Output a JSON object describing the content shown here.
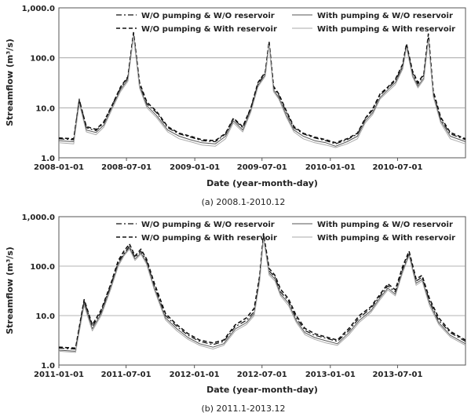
{
  "chart_data": [
    {
      "type": "line",
      "caption": "(a) 2008.1-2010.12",
      "xlabel": "Date (year-month-day)",
      "ylabel": "Streamflow (m³/s)",
      "y_scale": "log",
      "ylim": [
        1.0,
        1000.0
      ],
      "yticks": [
        "1.0",
        "10.0",
        "100.0",
        "1,000.0"
      ],
      "xlim": [
        "2008-01-01",
        "2010-12-31"
      ],
      "xticks": [
        "2008-01-01",
        "2008-07-01",
        "2009-01-01",
        "2009-07-01",
        "2010-01-01",
        "2010-07-01"
      ],
      "grid": "horizontal",
      "legend_placement": "top",
      "series": [
        {
          "name": "W/O pumping & W/O reservoir",
          "style": "dash-dot",
          "color": "#111111",
          "x": [
            "2008-01-01",
            "2008-02-10",
            "2008-02-25",
            "2008-03-15",
            "2008-04-10",
            "2008-05-01",
            "2008-05-25",
            "2008-06-15",
            "2008-07-05",
            "2008-07-20",
            "2008-08-05",
            "2008-08-25",
            "2008-09-20",
            "2008-10-20",
            "2008-11-20",
            "2008-12-20",
            "2009-01-20",
            "2009-02-25",
            "2009-03-25",
            "2009-04-15",
            "2009-05-10",
            "2009-06-01",
            "2009-06-20",
            "2009-07-10",
            "2009-07-20",
            "2009-08-01",
            "2009-08-15",
            "2009-09-05",
            "2009-09-25",
            "2009-10-20",
            "2009-11-20",
            "2009-12-20",
            "2010-01-15",
            "2010-02-15",
            "2010-03-15",
            "2010-04-05",
            "2010-04-25",
            "2010-05-15",
            "2010-06-05",
            "2010-06-25",
            "2010-07-15",
            "2010-07-25",
            "2010-08-10",
            "2010-08-25",
            "2010-09-10",
            "2010-09-22",
            "2010-10-05",
            "2010-10-25",
            "2010-11-20",
            "2010-12-31"
          ],
          "values": [
            2.4,
            2.3,
            15,
            4,
            3.5,
            5,
            12,
            25,
            40,
            300,
            30,
            12,
            8,
            4,
            3,
            2.6,
            2.2,
            2.1,
            3,
            6,
            4,
            10,
            30,
            50,
            200,
            25,
            18,
            8,
            4,
            3,
            2.5,
            2.2,
            1.9,
            2.3,
            3,
            6,
            9,
            18,
            25,
            35,
            70,
            180,
            50,
            30,
            45,
            250,
            20,
            6,
            3,
            2.3
          ]
        },
        {
          "name": "With pumping & W/O reservoir",
          "style": "solid",
          "color": "#555555",
          "x": [
            "2008-01-01",
            "2008-02-10",
            "2008-02-25",
            "2008-03-15",
            "2008-04-10",
            "2008-05-01",
            "2008-05-25",
            "2008-06-15",
            "2008-07-05",
            "2008-07-20",
            "2008-08-05",
            "2008-08-25",
            "2008-09-20",
            "2008-10-20",
            "2008-11-20",
            "2008-12-20",
            "2009-01-20",
            "2009-02-25",
            "2009-03-25",
            "2009-04-15",
            "2009-05-10",
            "2009-06-01",
            "2009-06-20",
            "2009-07-10",
            "2009-07-20",
            "2009-08-01",
            "2009-08-15",
            "2009-09-05",
            "2009-09-25",
            "2009-10-20",
            "2009-11-20",
            "2009-12-20",
            "2010-01-15",
            "2010-02-15",
            "2010-03-15",
            "2010-04-05",
            "2010-04-25",
            "2010-05-15",
            "2010-06-05",
            "2010-06-25",
            "2010-07-15",
            "2010-07-25",
            "2010-08-10",
            "2010-08-25",
            "2010-09-10",
            "2010-09-22",
            "2010-10-05",
            "2010-10-25",
            "2010-11-20",
            "2010-12-31"
          ],
          "values": [
            2.2,
            2.1,
            13,
            3.6,
            3.2,
            4.5,
            11,
            23,
            37,
            280,
            27,
            11,
            7,
            3.6,
            2.7,
            2.3,
            2.0,
            1.9,
            2.7,
            5.5,
            3.6,
            9,
            28,
            46,
            190,
            23,
            16,
            7,
            3.6,
            2.7,
            2.2,
            2.0,
            1.7,
            2.1,
            2.7,
            5.5,
            8,
            16,
            23,
            32,
            65,
            170,
            45,
            27,
            40,
            240,
            18,
            5.5,
            2.7,
            2.1
          ]
        },
        {
          "name": "W/O pumping & With reservoir",
          "style": "dash",
          "color": "#111111",
          "x": [
            "2008-01-01",
            "2008-02-10",
            "2008-02-25",
            "2008-03-15",
            "2008-04-10",
            "2008-05-01",
            "2008-05-25",
            "2008-06-15",
            "2008-07-05",
            "2008-07-20",
            "2008-08-05",
            "2008-08-25",
            "2008-09-20",
            "2008-10-20",
            "2008-11-20",
            "2008-12-20",
            "2009-01-20",
            "2009-02-25",
            "2009-03-25",
            "2009-04-15",
            "2009-05-10",
            "2009-06-01",
            "2009-06-20",
            "2009-07-10",
            "2009-07-20",
            "2009-08-01",
            "2009-08-15",
            "2009-09-05",
            "2009-09-25",
            "2009-10-20",
            "2009-11-20",
            "2009-12-20",
            "2010-01-15",
            "2010-02-15",
            "2010-03-15",
            "2010-04-05",
            "2010-04-25",
            "2010-05-15",
            "2010-06-05",
            "2010-06-25",
            "2010-07-15",
            "2010-07-25",
            "2010-08-10",
            "2010-08-25",
            "2010-09-10",
            "2010-09-22",
            "2010-10-05",
            "2010-10-25",
            "2010-11-20",
            "2010-12-31"
          ],
          "values": [
            2.5,
            2.4,
            14,
            4.2,
            3.7,
            5.2,
            12,
            26,
            42,
            320,
            32,
            13,
            8.5,
            4.2,
            3.1,
            2.7,
            2.3,
            2.2,
            3.1,
            6.2,
            4.2,
            10,
            32,
            52,
            210,
            27,
            19,
            8.5,
            4.2,
            3.1,
            2.6,
            2.3,
            2.0,
            2.4,
            3.1,
            6.2,
            9.5,
            19,
            26,
            37,
            75,
            190,
            55,
            32,
            48,
            300,
            22,
            6.5,
            3.2,
            2.4
          ]
        },
        {
          "name": "With pumping & With reservoir",
          "style": "solid-light",
          "color": "#aaaaaa",
          "x": [
            "2008-01-01",
            "2008-02-10",
            "2008-02-25",
            "2008-03-15",
            "2008-04-10",
            "2008-05-01",
            "2008-05-25",
            "2008-06-15",
            "2008-07-05",
            "2008-07-20",
            "2008-08-05",
            "2008-08-25",
            "2008-09-20",
            "2008-10-20",
            "2008-11-20",
            "2008-12-20",
            "2009-01-20",
            "2009-02-25",
            "2009-03-25",
            "2009-04-15",
            "2009-05-10",
            "2009-06-01",
            "2009-06-20",
            "2009-07-10",
            "2009-07-20",
            "2009-08-01",
            "2009-08-15",
            "2009-09-05",
            "2009-09-25",
            "2009-10-20",
            "2009-11-20",
            "2009-12-20",
            "2010-01-15",
            "2010-02-15",
            "2010-03-15",
            "2010-04-05",
            "2010-04-25",
            "2010-05-15",
            "2010-06-05",
            "2010-06-25",
            "2010-07-15",
            "2010-07-25",
            "2010-08-10",
            "2010-08-25",
            "2010-09-10",
            "2010-09-22",
            "2010-10-05",
            "2010-10-25",
            "2010-11-20",
            "2010-12-31"
          ],
          "values": [
            2.0,
            1.9,
            12,
            3.3,
            2.9,
            4.1,
            10,
            21,
            34,
            270,
            25,
            10,
            6.4,
            3.3,
            2.4,
            2.1,
            1.8,
            1.7,
            2.4,
            5,
            3.3,
            8.2,
            26,
            43,
            180,
            21,
            15,
            6.4,
            3.3,
            2.4,
            2.0,
            1.8,
            1.6,
            1.9,
            2.4,
            5,
            7.3,
            15,
            21,
            29,
            60,
            160,
            42,
            25,
            37,
            230,
            17,
            5,
            2.4,
            1.9
          ]
        }
      ]
    },
    {
      "type": "line",
      "caption": "(b) 2011.1-2013.12",
      "xlabel": "Date (year-month-day)",
      "ylabel": "Streamflow (m³/s)",
      "y_scale": "log",
      "ylim": [
        1.0,
        1000.0
      ],
      "yticks": [
        "1.0",
        "10.0",
        "100.0",
        "1,000.0"
      ],
      "xlim": [
        "2011-01-01",
        "2013-12-31"
      ],
      "xticks": [
        "2011-01-01",
        "2011-07-01",
        "2012-01-01",
        "2012-07-01",
        "2013-01-01",
        "2013-07-01"
      ],
      "grid": "horizontal",
      "legend_placement": "top",
      "series": [
        {
          "name": "W/O pumping & W/O reservoir",
          "style": "dash-dot",
          "color": "#111111",
          "x": [
            "2011-01-01",
            "2011-02-15",
            "2011-03-10",
            "2011-04-01",
            "2011-04-25",
            "2011-05-20",
            "2011-06-10",
            "2011-06-25",
            "2011-07-10",
            "2011-07-25",
            "2011-08-10",
            "2011-08-25",
            "2011-09-15",
            "2011-10-15",
            "2011-11-15",
            "2011-12-15",
            "2012-01-15",
            "2012-02-20",
            "2012-03-20",
            "2012-04-20",
            "2012-05-20",
            "2012-06-10",
            "2012-06-25",
            "2012-07-05",
            "2012-07-20",
            "2012-08-05",
            "2012-08-20",
            "2012-09-10",
            "2012-10-01",
            "2012-10-25",
            "2012-11-20",
            "2012-12-20",
            "2013-01-20",
            "2013-02-20",
            "2013-03-20",
            "2013-04-20",
            "2013-05-15",
            "2013-06-05",
            "2013-06-25",
            "2013-07-15",
            "2013-08-01",
            "2013-08-20",
            "2013-09-05",
            "2013-09-25",
            "2013-10-20",
            "2013-11-20",
            "2013-12-31"
          ],
          "values": [
            2.2,
            2.1,
            20,
            6,
            12,
            40,
            120,
            180,
            250,
            150,
            200,
            130,
            40,
            10,
            6,
            4,
            3,
            2.6,
            3,
            6,
            8,
            12,
            60,
            400,
            80,
            60,
            30,
            20,
            9,
            5,
            4,
            3.5,
            3,
            5,
            9,
            14,
            25,
            40,
            30,
            90,
            180,
            50,
            60,
            20,
            8,
            4.5,
            3
          ]
        },
        {
          "name": "With pumping & W/O reservoir",
          "style": "solid",
          "color": "#555555",
          "x": [
            "2011-01-01",
            "2011-02-15",
            "2011-03-10",
            "2011-04-01",
            "2011-04-25",
            "2011-05-20",
            "2011-06-10",
            "2011-06-25",
            "2011-07-10",
            "2011-07-25",
            "2011-08-10",
            "2011-08-25",
            "2011-09-15",
            "2011-10-15",
            "2011-11-15",
            "2011-12-15",
            "2012-01-15",
            "2012-02-20",
            "2012-03-20",
            "2012-04-20",
            "2012-05-20",
            "2012-06-10",
            "2012-06-25",
            "2012-07-05",
            "2012-07-20",
            "2012-08-05",
            "2012-08-20",
            "2012-09-10",
            "2012-10-01",
            "2012-10-25",
            "2012-11-20",
            "2012-12-20",
            "2013-01-20",
            "2013-02-20",
            "2013-03-20",
            "2013-04-20",
            "2013-05-15",
            "2013-06-05",
            "2013-06-25",
            "2013-07-15",
            "2013-08-01",
            "2013-08-20",
            "2013-09-05",
            "2013-09-25",
            "2013-10-20",
            "2013-11-20",
            "2013-12-31"
          ],
          "values": [
            2.0,
            1.9,
            18,
            5.4,
            11,
            36,
            110,
            170,
            235,
            140,
            185,
            120,
            36,
            9,
            5.4,
            3.6,
            2.7,
            2.3,
            2.7,
            5.4,
            7.2,
            11,
            55,
            380,
            72,
            55,
            27,
            18,
            8,
            4.5,
            3.6,
            3.1,
            2.7,
            4.5,
            8,
            12.5,
            23,
            36,
            27,
            82,
            170,
            45,
            54,
            18,
            7.2,
            4,
            2.7
          ]
        },
        {
          "name": "W/O pumping & With reservoir",
          "style": "dash",
          "color": "#111111",
          "x": [
            "2011-01-01",
            "2011-02-15",
            "2011-03-10",
            "2011-04-01",
            "2011-04-25",
            "2011-05-20",
            "2011-06-10",
            "2011-06-25",
            "2011-07-10",
            "2011-07-25",
            "2011-08-10",
            "2011-08-25",
            "2011-09-15",
            "2011-10-15",
            "2011-11-15",
            "2011-12-15",
            "2012-01-15",
            "2012-02-20",
            "2012-03-20",
            "2012-04-20",
            "2012-05-20",
            "2012-06-10",
            "2012-06-25",
            "2012-07-05",
            "2012-07-20",
            "2012-08-05",
            "2012-08-20",
            "2012-09-10",
            "2012-10-01",
            "2012-10-25",
            "2012-11-20",
            "2012-12-20",
            "2013-01-20",
            "2013-02-20",
            "2013-03-20",
            "2013-04-20",
            "2013-05-15",
            "2013-06-05",
            "2013-06-25",
            "2013-07-15",
            "2013-08-01",
            "2013-08-20",
            "2013-09-05",
            "2013-09-25",
            "2013-10-20",
            "2013-11-20",
            "2013-12-31"
          ],
          "values": [
            2.3,
            2.2,
            21,
            6.5,
            13,
            42,
            130,
            200,
            280,
            160,
            220,
            140,
            45,
            11,
            6.5,
            4.3,
            3.2,
            2.8,
            3.2,
            6.5,
            9,
            14,
            65,
            450,
            90,
            65,
            34,
            22,
            10,
            5.5,
            4.3,
            3.7,
            3.2,
            5.5,
            10,
            15,
            27,
            44,
            33,
            100,
            200,
            55,
            65,
            22,
            9,
            4.8,
            3.2
          ]
        },
        {
          "name": "With pumping & With reservoir",
          "style": "solid-light",
          "color": "#aaaaaa",
          "x": [
            "2011-01-01",
            "2011-02-15",
            "2011-03-10",
            "2011-04-01",
            "2011-04-25",
            "2011-05-20",
            "2011-06-10",
            "2011-06-25",
            "2011-07-10",
            "2011-07-25",
            "2011-08-10",
            "2011-08-25",
            "2011-09-15",
            "2011-10-15",
            "2011-11-15",
            "2011-12-15",
            "2012-01-15",
            "2012-02-20",
            "2012-03-20",
            "2012-04-20",
            "2012-05-20",
            "2012-06-10",
            "2012-06-25",
            "2012-07-05",
            "2012-07-20",
            "2012-08-05",
            "2012-08-20",
            "2012-09-10",
            "2012-10-01",
            "2012-10-25",
            "2012-11-20",
            "2012-12-20",
            "2013-01-20",
            "2013-02-20",
            "2013-03-20",
            "2013-04-20",
            "2013-05-15",
            "2013-06-05",
            "2013-06-25",
            "2013-07-15",
            "2013-08-01",
            "2013-08-20",
            "2013-09-05",
            "2013-09-25",
            "2013-10-20",
            "2013-11-20",
            "2013-12-31"
          ],
          "values": [
            1.9,
            1.8,
            16,
            4.9,
            10,
            33,
            100,
            160,
            220,
            130,
            175,
            110,
            33,
            8.2,
            4.9,
            3.3,
            2.5,
            2.1,
            2.5,
            4.9,
            6.6,
            10,
            50,
            360,
            66,
            50,
            25,
            16,
            7.3,
            4.1,
            3.3,
            2.8,
            2.5,
            4.1,
            7.3,
            11.5,
            21,
            33,
            25,
            75,
            160,
            41,
            50,
            16,
            6.6,
            3.7,
            2.5
          ]
        }
      ]
    }
  ]
}
